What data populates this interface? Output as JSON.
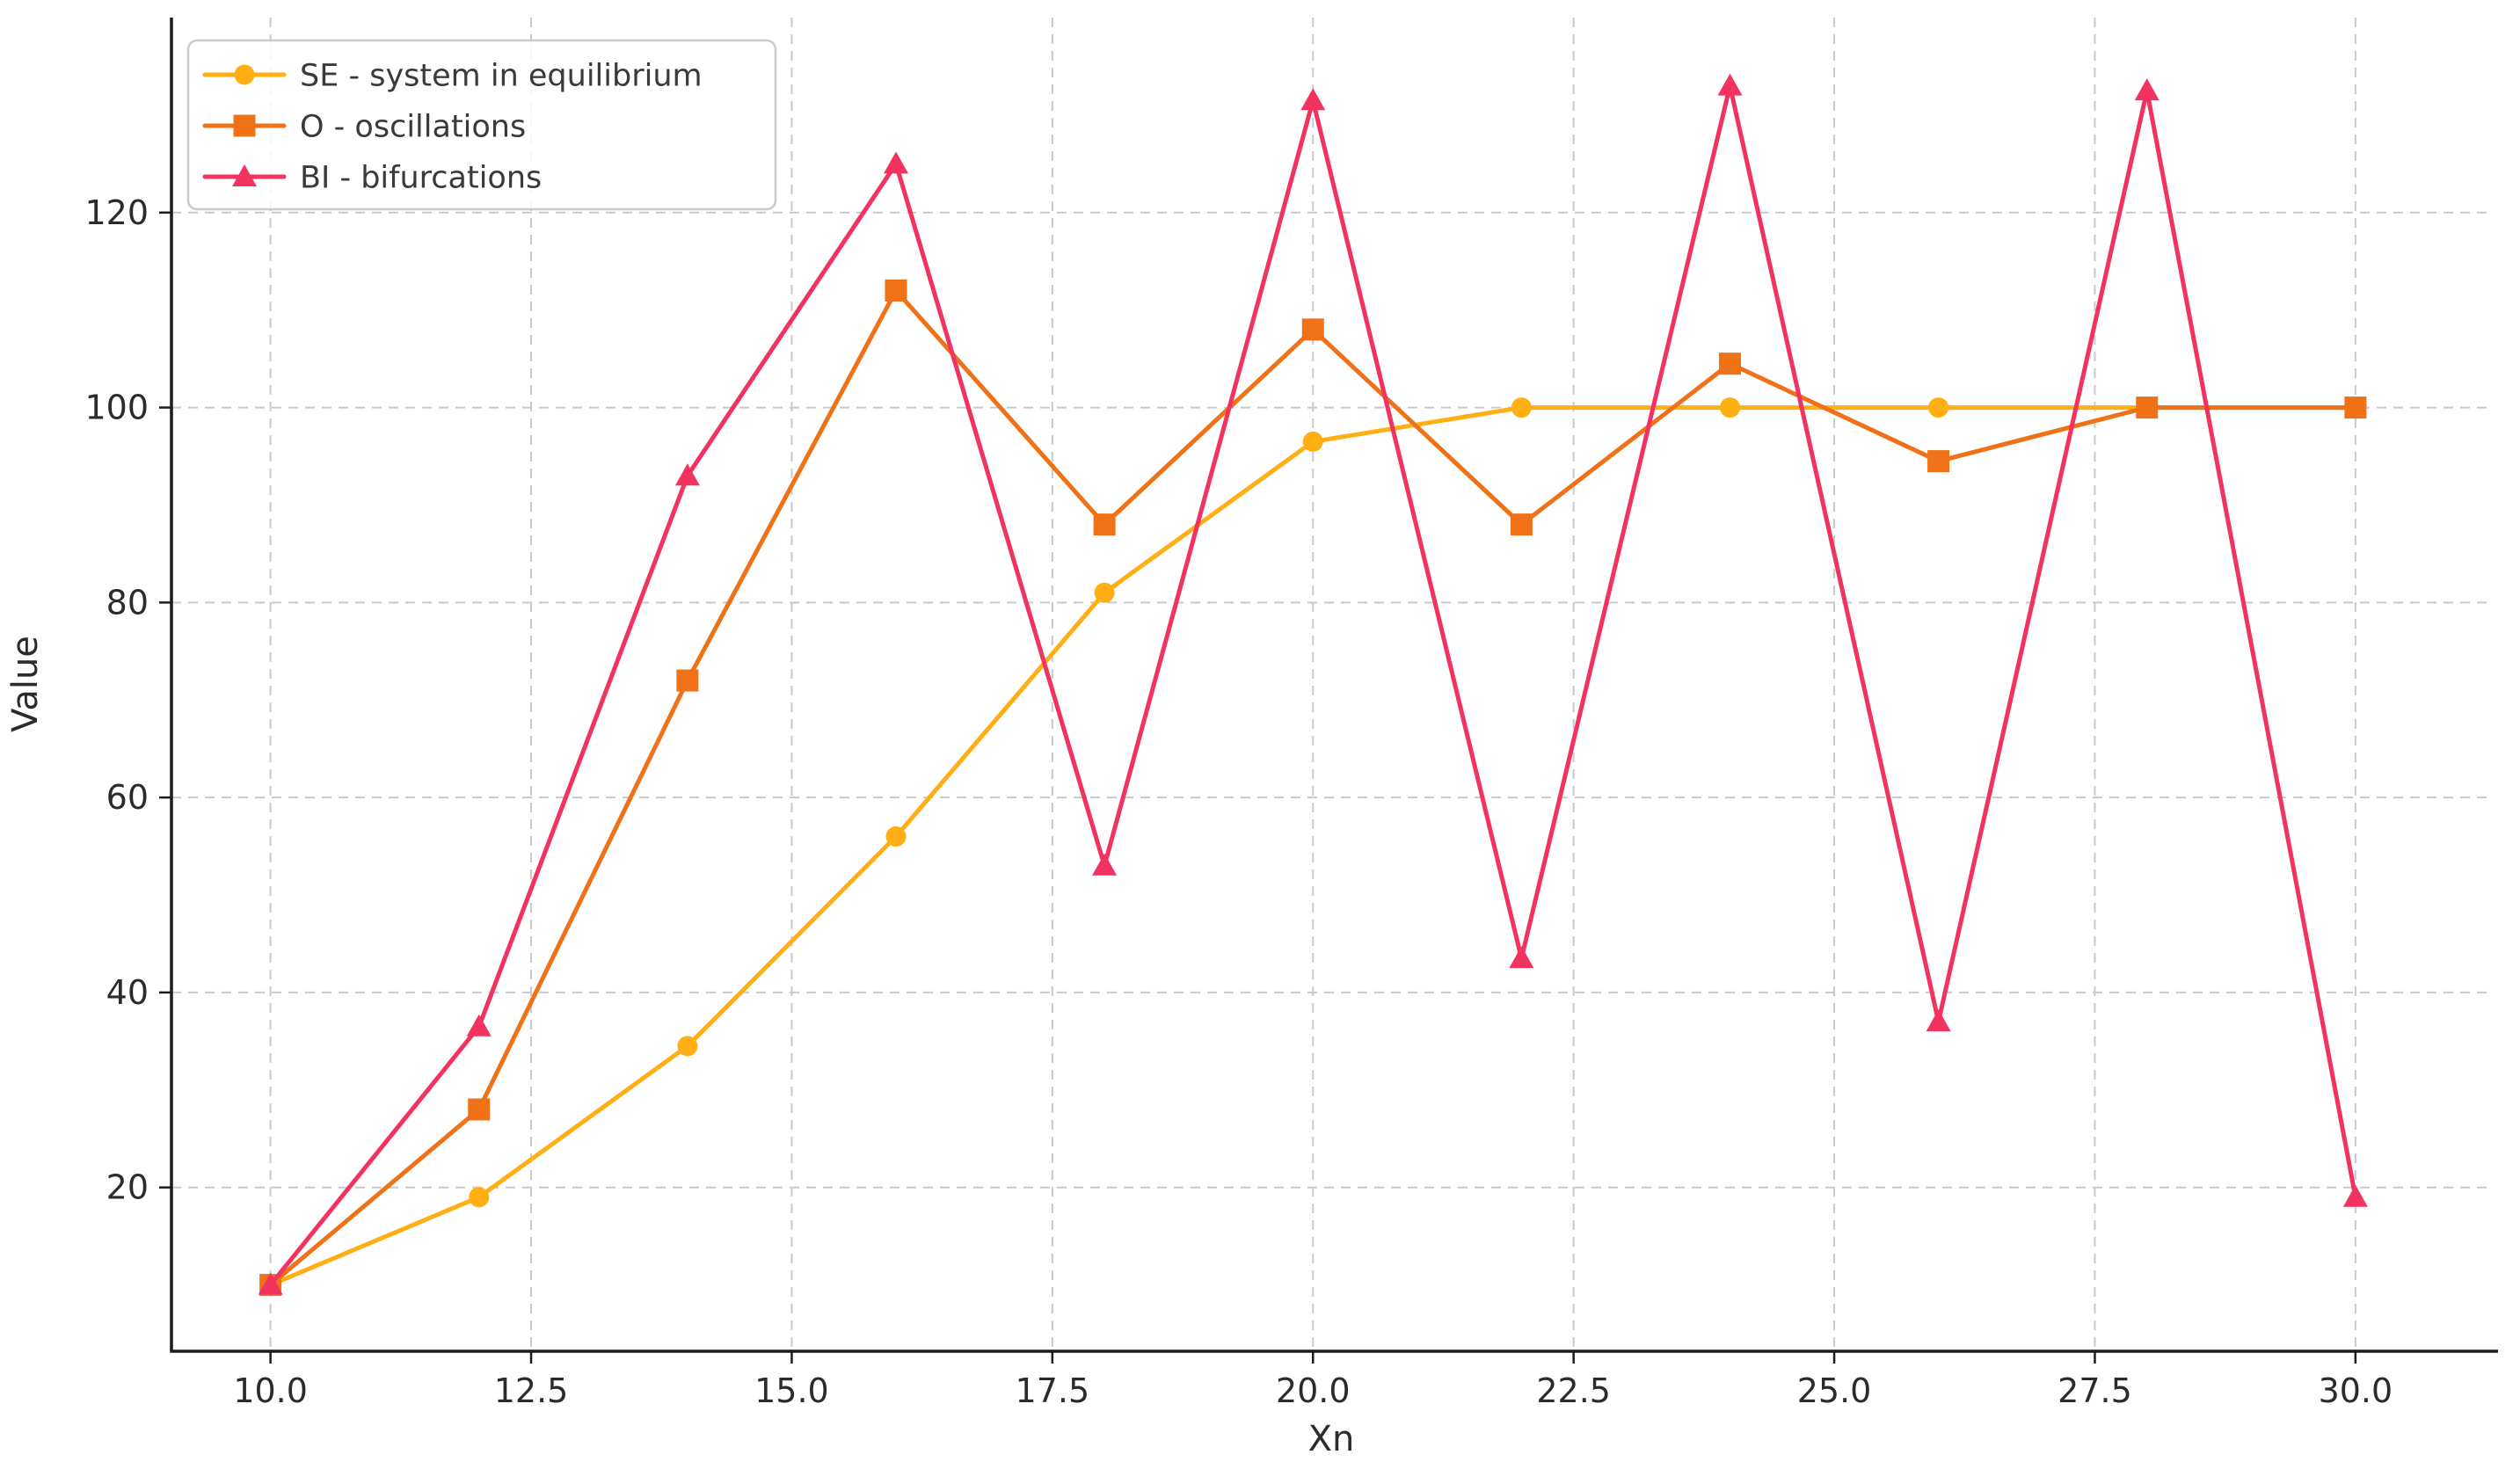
{
  "chart_data": {
    "type": "line",
    "title": "",
    "xlabel": "Xn",
    "ylabel": "Value",
    "xlim": [
      9.05,
      31.3
    ],
    "ylim": [
      3.2,
      140.0
    ],
    "grid": true,
    "grid_style": "dashed",
    "legend_position": "upper-left",
    "x": [
      10,
      12,
      14,
      16,
      18,
      20,
      22,
      24,
      26,
      28,
      30
    ],
    "xticks": {
      "values": [
        10.0,
        12.5,
        15.0,
        17.5,
        20.0,
        22.5,
        25.0,
        27.5,
        30.0
      ],
      "labels": [
        "10.0",
        "12.5",
        "15.0",
        "17.5",
        "20.0",
        "22.5",
        "25.0",
        "27.5",
        "30.0"
      ]
    },
    "yticks": {
      "values": [
        20,
        40,
        60,
        80,
        100,
        120
      ],
      "labels": [
        "20",
        "40",
        "60",
        "80",
        "100",
        "120"
      ]
    },
    "series": [
      {
        "id": "SE",
        "label": "SE - system in equilibrium",
        "color": "#FFAF14",
        "marker": "circle",
        "values": [
          10,
          19,
          34.5,
          56,
          81,
          96.5,
          100,
          100,
          100,
          100,
          100
        ]
      },
      {
        "id": "O",
        "label": "O - oscillations",
        "color": "#EF7118",
        "marker": "square",
        "values": [
          10,
          28,
          72,
          112,
          88,
          108,
          88,
          104.5,
          94.5,
          100,
          100
        ]
      },
      {
        "id": "BI",
        "label": "BI - bifurcations",
        "color": "#F23360",
        "marker": "triangle",
        "values": [
          10,
          36.5,
          93,
          125,
          53,
          131.5,
          43.5,
          133,
          37,
          132.5,
          19
        ]
      }
    ],
    "colors": {
      "grid": "#c9c9c9",
      "spine": "#1c1c1c",
      "tick_text": "#2b2b2b",
      "legend_text": "#3a3a3a",
      "legend_border": "#cccccc",
      "legend_bg_alpha": 0.85,
      "background": "#ffffff"
    }
  }
}
